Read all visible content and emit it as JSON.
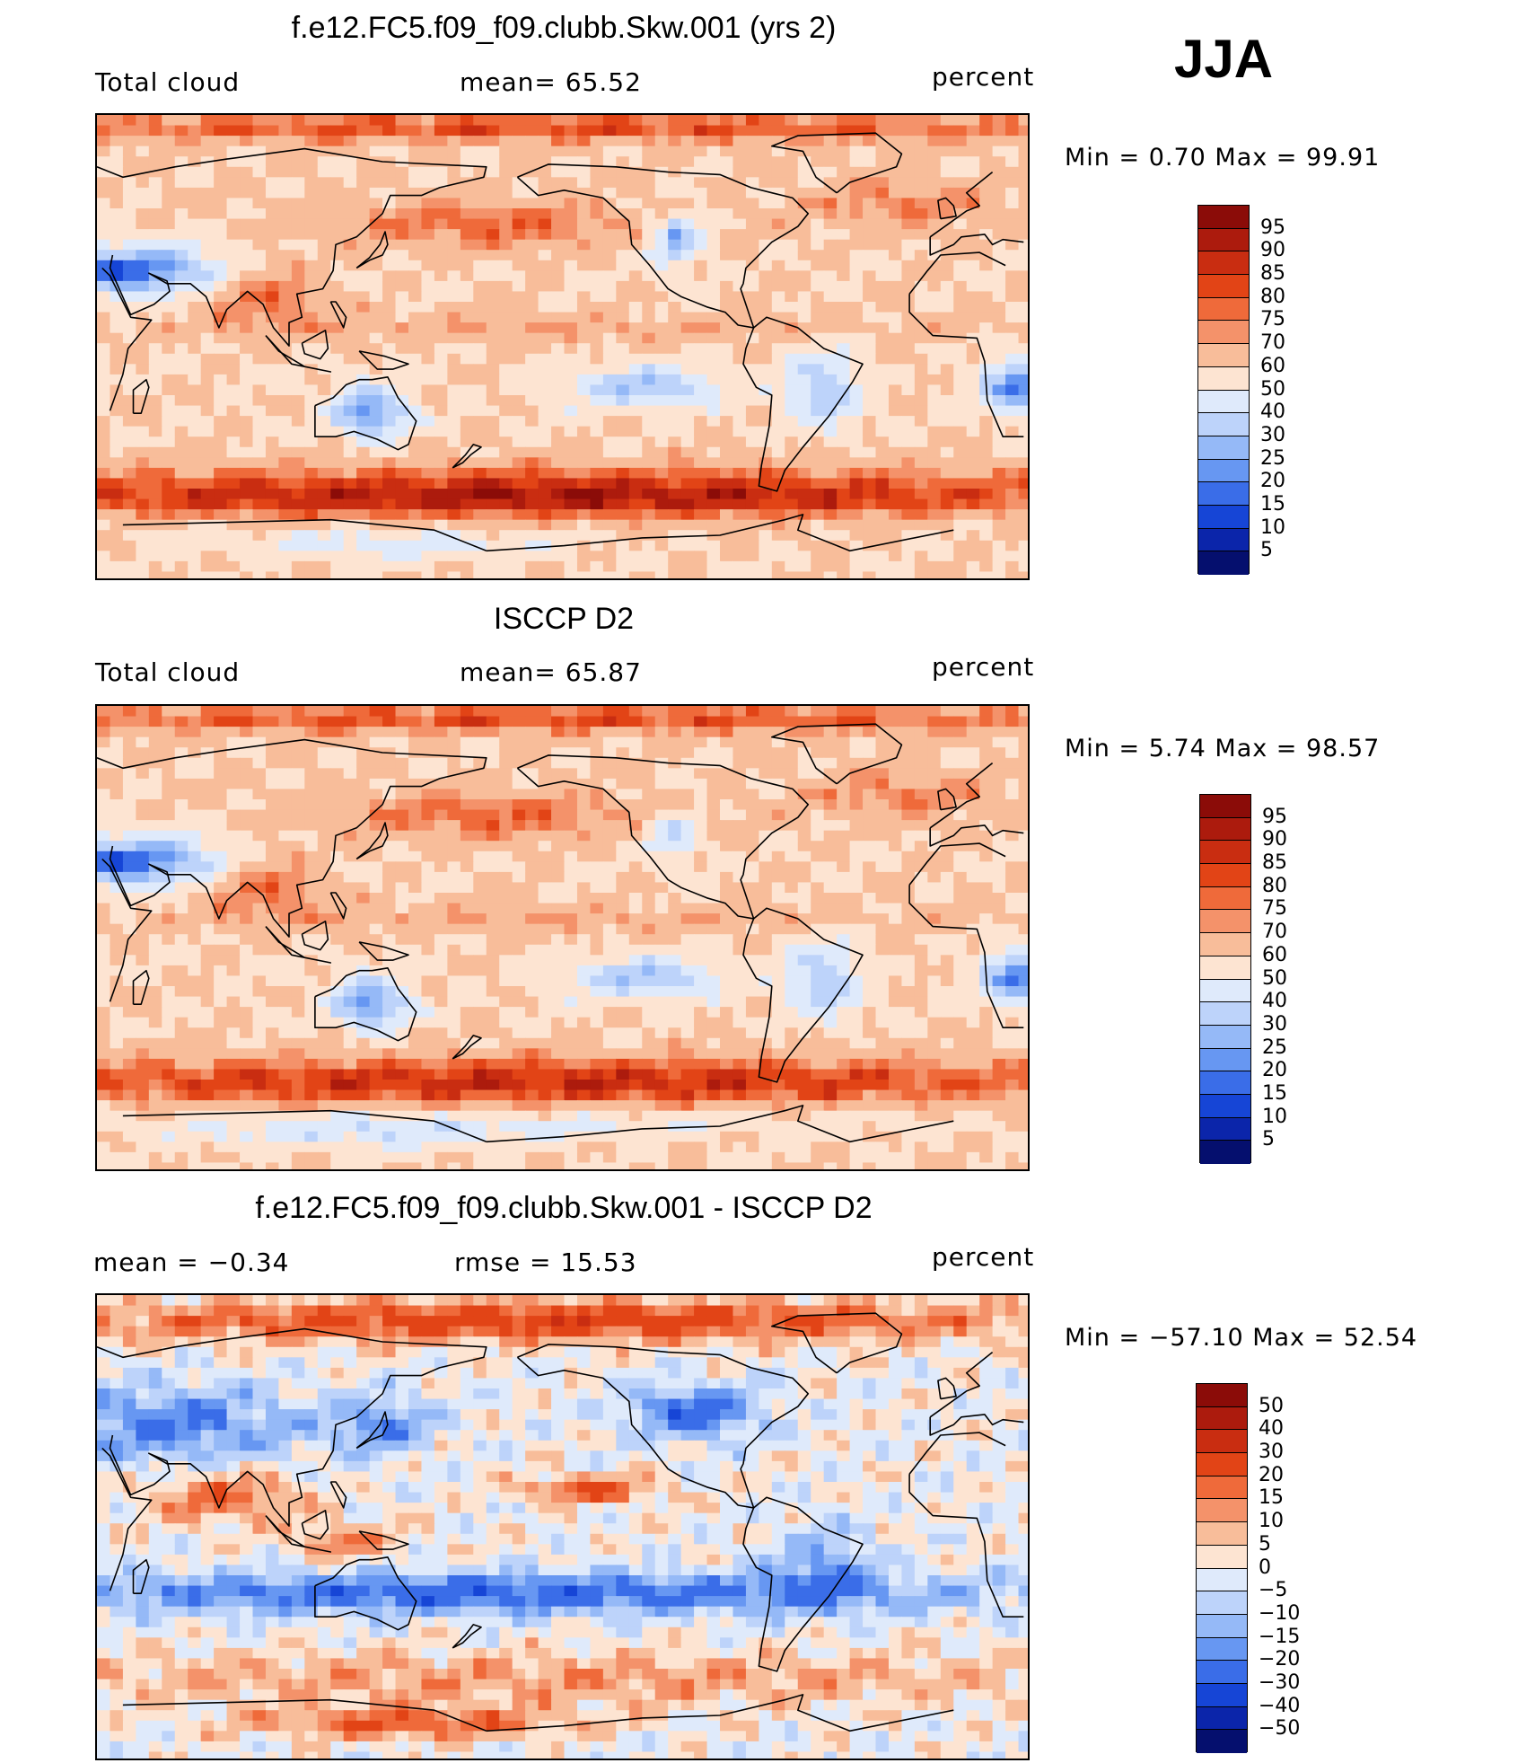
{
  "season": "JJA",
  "units": "percent",
  "colors": {
    "coast": "#000000",
    "frame": "#000000"
  },
  "panels": [
    {
      "id": "model",
      "title": "f.e12.FC5.f09_f09.clubb.Skw.001 (yrs 2)",
      "variable": "Total cloud",
      "stat_left_label": "",
      "stat_left": "mean=   65.52",
      "stat_right": "",
      "units": "percent",
      "min_max": "Min  =      0.70  Max  =     99.91",
      "field_kind": "model",
      "colorbar": {
        "labels": [
          "95",
          "90",
          "85",
          "80",
          "75",
          "70",
          "60",
          "50",
          "40",
          "30",
          "25",
          "20",
          "15",
          "10",
          "5"
        ],
        "colors": [
          "#8b0c08",
          "#ac1b0d",
          "#c92d11",
          "#e24416",
          "#ef6a3a",
          "#f4926a",
          "#f8bd9a",
          "#fde4d2",
          "#dfeafb",
          "#bdd3fa",
          "#95b9f7",
          "#6797f2",
          "#3a6de8",
          "#1645d6",
          "#0b25aa",
          "#050f6e"
        ]
      }
    },
    {
      "id": "obs",
      "title": "ISCCP D2",
      "variable": "Total cloud",
      "stat_left_label": "",
      "stat_left": "mean=   65.87",
      "stat_right": "",
      "units": "percent",
      "min_max": "Min  =      5.74  Max  =     98.57",
      "field_kind": "obs",
      "colorbar": {
        "labels": [
          "95",
          "90",
          "85",
          "80",
          "75",
          "70",
          "60",
          "50",
          "40",
          "30",
          "25",
          "20",
          "15",
          "10",
          "5"
        ],
        "colors": [
          "#8b0c08",
          "#ac1b0d",
          "#c92d11",
          "#e24416",
          "#ef6a3a",
          "#f4926a",
          "#f8bd9a",
          "#fde4d2",
          "#dfeafb",
          "#bdd3fa",
          "#95b9f7",
          "#6797f2",
          "#3a6de8",
          "#1645d6",
          "#0b25aa",
          "#050f6e"
        ]
      }
    },
    {
      "id": "diff",
      "title": "f.e12.FC5.f09_f09.clubb.Skw.001 - ISCCP D2",
      "variable": "",
      "stat_left_label": "mean  =    −0.34",
      "stat_left": "rmse  =    15.53",
      "stat_right": "",
      "units": "percent",
      "min_max": "Min  = −57.10  Max  =     52.54",
      "field_kind": "diff",
      "colorbar": {
        "labels": [
          "50",
          "40",
          "30",
          "20",
          "15",
          "10",
          "5",
          "0",
          "−5",
          "−10",
          "−15",
          "−20",
          "−30",
          "−40",
          "−50"
        ],
        "colors": [
          "#8b0c08",
          "#ac1b0d",
          "#c92d11",
          "#e24416",
          "#ef6a3a",
          "#f4926a",
          "#f8bd9a",
          "#fde4d2",
          "#dfeafb",
          "#bdd3fa",
          "#95b9f7",
          "#6797f2",
          "#3a6de8",
          "#1645d6",
          "#0b25aa",
          "#050f6e"
        ]
      }
    }
  ]
}
